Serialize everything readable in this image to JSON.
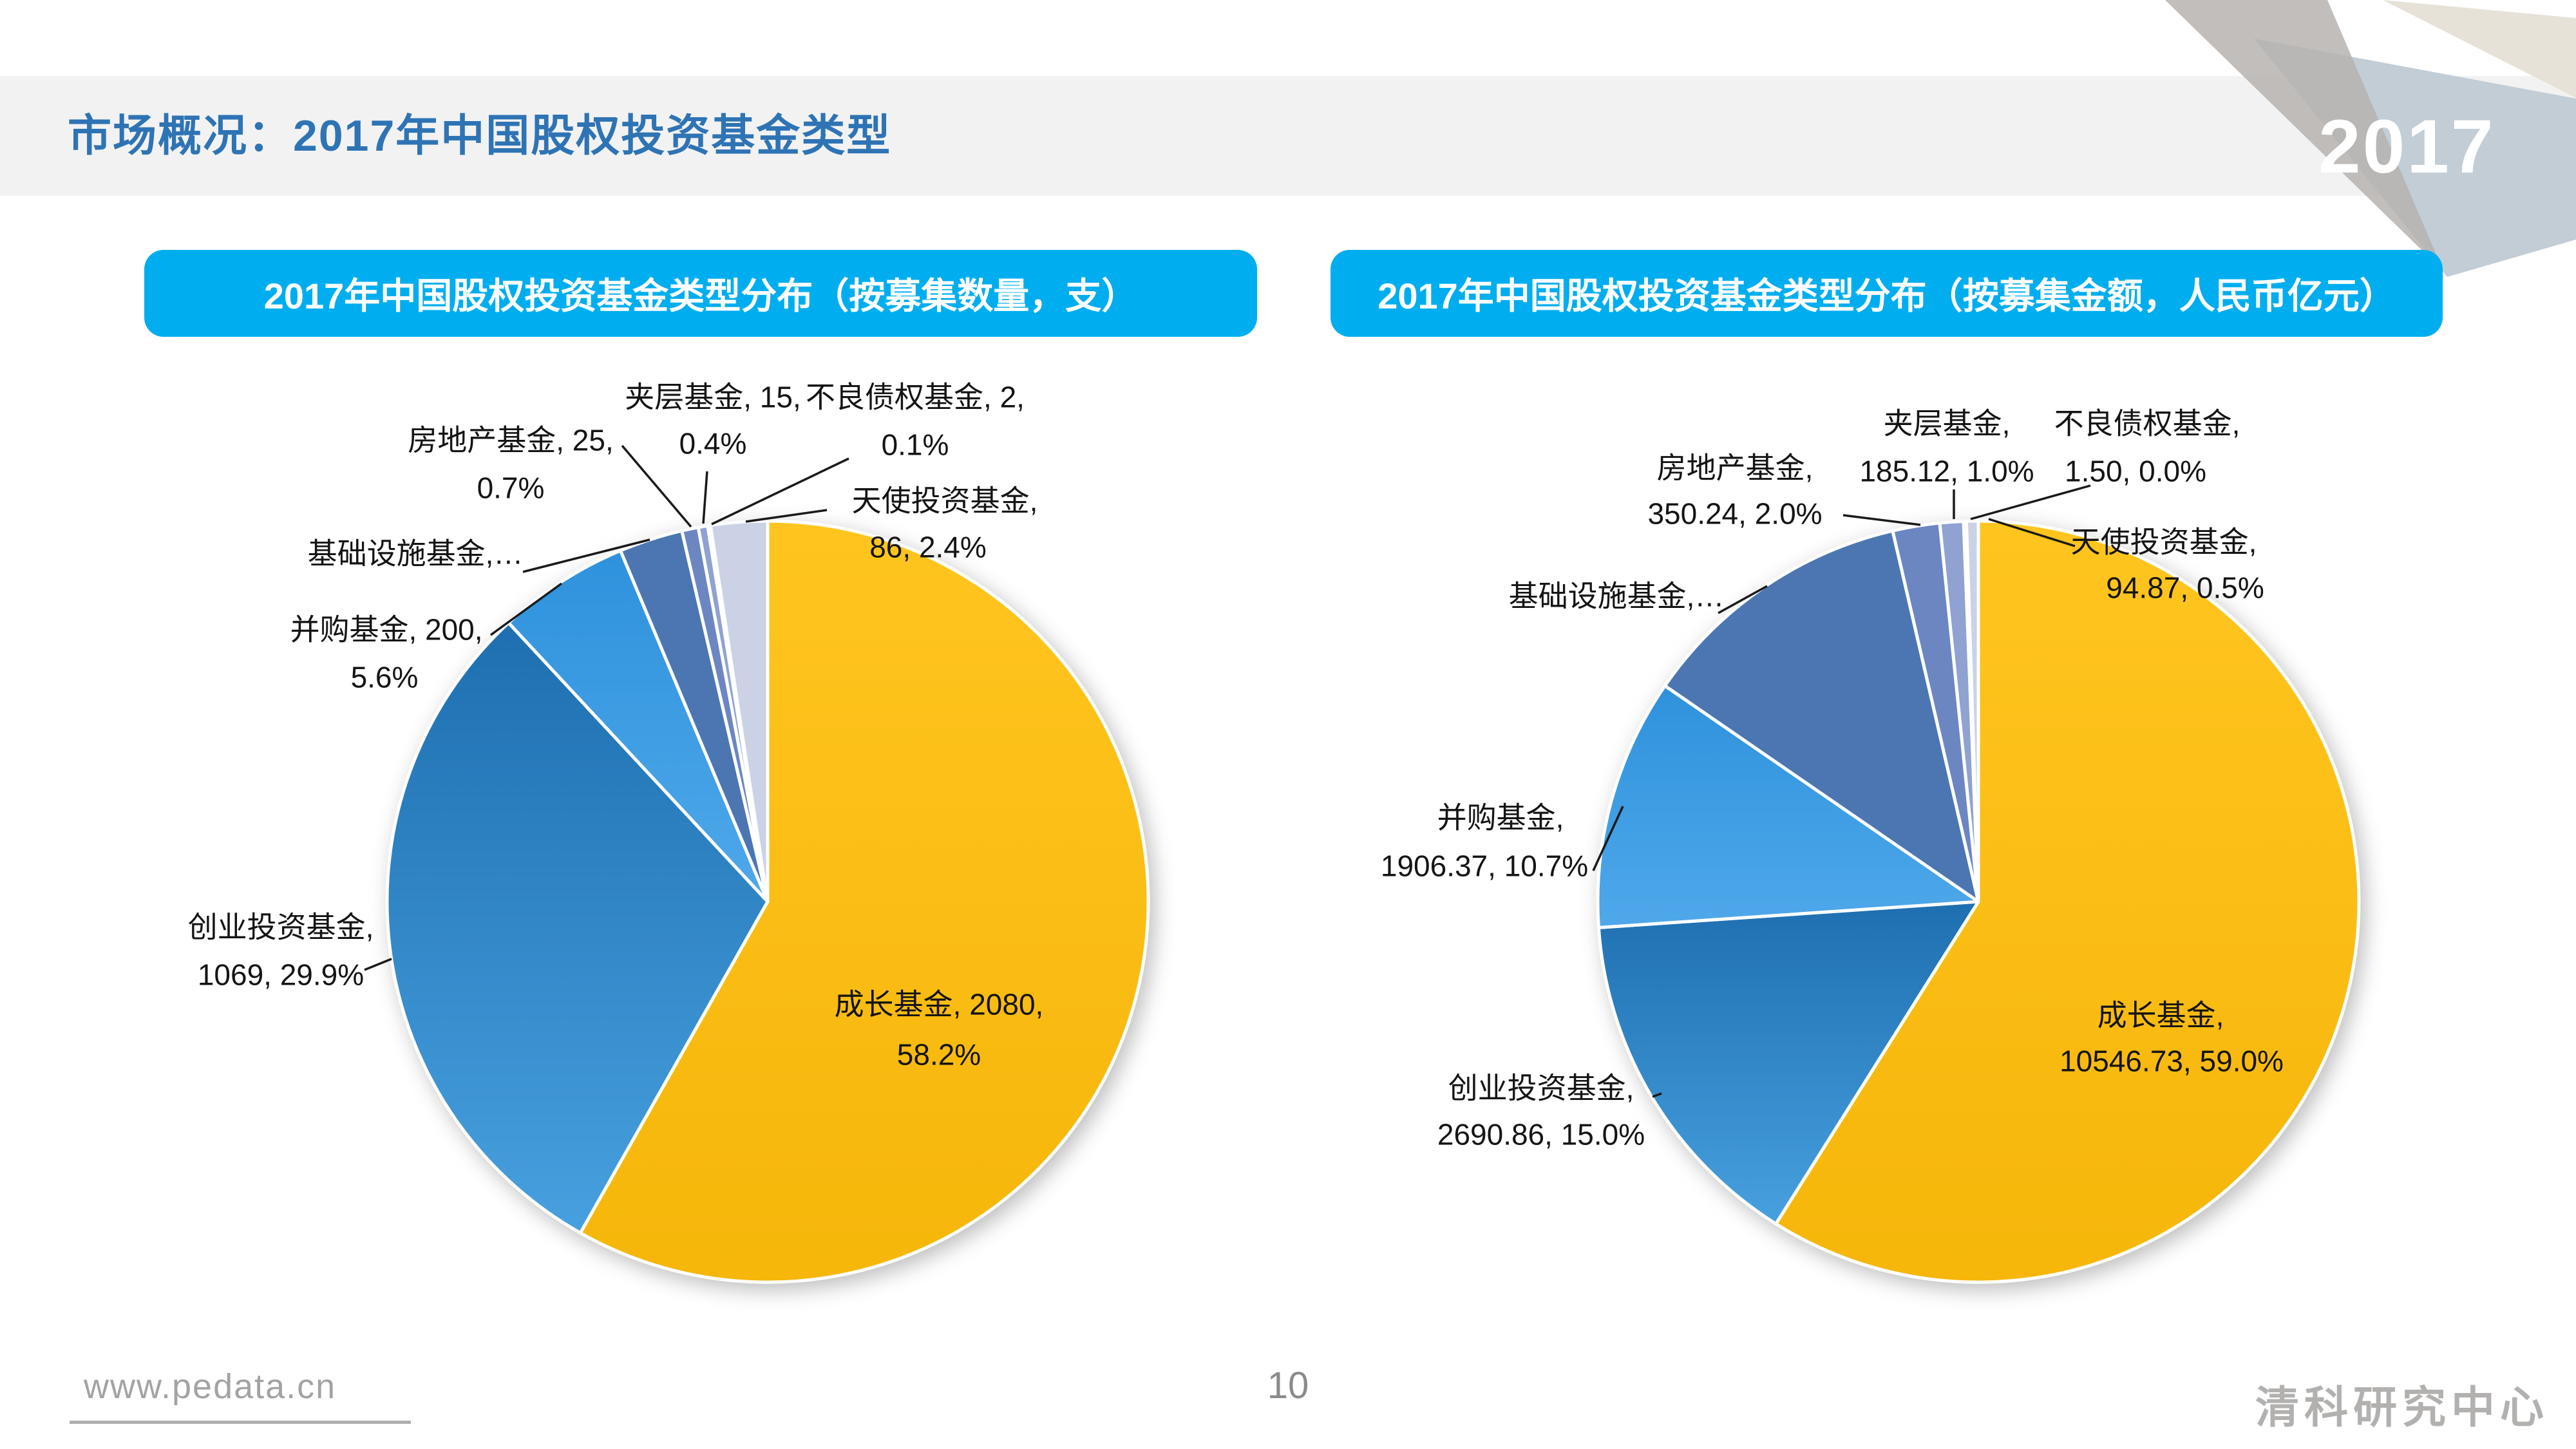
{
  "page": {
    "title": "市场概况：2017年中国股权投资基金类型",
    "year_badge": "2017",
    "footer": {
      "website": "www.pedata.cn",
      "page_number": "10",
      "brand": "清科研究中心"
    }
  },
  "colors": {
    "accent_bar": "#00AEEF",
    "title_blue": "#2E74B5",
    "growth_yellow": "#FEBE10",
    "vc_blue": "#2E86C9"
  },
  "chart_data": [
    {
      "type": "pie",
      "title": "2017年中国股权投资基金类型分布（按募集数量，支）",
      "unit": "支",
      "legend_position": "callouts",
      "slices": [
        {
          "name": "成长基金",
          "value": 2080,
          "pct": 58.2,
          "color": "#FEBE10",
          "gradient": [
            "#FFC51F",
            "#F6B60A"
          ]
        },
        {
          "name": "创业投资基金",
          "value": 1069,
          "pct": 29.9,
          "color": "#2E86C9",
          "gradient": [
            "#1E6FB0",
            "#47A0DF"
          ]
        },
        {
          "name": "并购基金",
          "value": 200,
          "pct": 5.6,
          "color": "#3B97DF",
          "gradient": [
            "#2E92DC",
            "#4FA8EA"
          ]
        },
        {
          "name": "基础设施基金",
          "value": null,
          "pct": 2.7,
          "color": "#4C76B2"
        },
        {
          "name": "房地产基金",
          "value": 25,
          "pct": 0.7,
          "color": "#6C86C2"
        },
        {
          "name": "夹层基金",
          "value": 15,
          "pct": 0.4,
          "color": "#8FA2D1"
        },
        {
          "name": "不良债权基金",
          "value": 2,
          "pct": 0.1,
          "color": "#AEBBDC"
        },
        {
          "name": "天使投资基金",
          "value": 86,
          "pct": 2.4,
          "color": "#CBD2E6"
        }
      ],
      "callouts": [
        {
          "l1": "夹层基金, 15,",
          "l2": "0.4%"
        },
        {
          "l1": "不良债权基金, 2,",
          "l2": "0.1%"
        },
        {
          "l1": "房地产基金, 25,",
          "l2": "0.7%"
        },
        {
          "l1": "基础设施基金,…",
          "l2": ""
        },
        {
          "l1": "并购基金, 200,",
          "l2": "5.6%"
        },
        {
          "l1": "创业投资基金,",
          "l2": "1069, 29.9%"
        },
        {
          "l1": "天使投资基金,",
          "l2": "86, 2.4%"
        },
        {
          "l1": "成长基金, 2080,",
          "l2": "58.2%"
        }
      ]
    },
    {
      "type": "pie",
      "title": "2017年中国股权投资基金类型分布（按募集金额，人民币亿元）",
      "unit": "人民币亿元",
      "legend_position": "callouts",
      "slices": [
        {
          "name": "成长基金",
          "value": 10546.73,
          "pct": 59.0,
          "color": "#FEBE10",
          "gradient": [
            "#FFC51F",
            "#F6B60A"
          ]
        },
        {
          "name": "创业投资基金",
          "value": 2690.86,
          "pct": 15.0,
          "color": "#2E86C9",
          "gradient": [
            "#1E6FB0",
            "#47A0DF"
          ]
        },
        {
          "name": "并购基金",
          "value": 1906.37,
          "pct": 10.7,
          "color": "#3B97DF",
          "gradient": [
            "#2E92DC",
            "#4FA8EA"
          ]
        },
        {
          "name": "基础设施基金",
          "value": null,
          "pct": 11.8,
          "color": "#4C76B2"
        },
        {
          "name": "房地产基金",
          "value": 350.24,
          "pct": 2.0,
          "color": "#6C86C2"
        },
        {
          "name": "夹层基金",
          "value": 185.12,
          "pct": 1.0,
          "color": "#8FA2D1"
        },
        {
          "name": "不良债权基金",
          "value": 1.5,
          "pct": 0.0,
          "color": "#AEBBDC"
        },
        {
          "name": "天使投资基金",
          "value": 94.87,
          "pct": 0.5,
          "color": "#CBD2E6"
        }
      ],
      "callouts": [
        {
          "l1": "夹层基金,",
          "l2": "185.12, 1.0%"
        },
        {
          "l1": "不良债权基金,",
          "l2": "1.50, 0.0%"
        },
        {
          "l1": "房地产基金,",
          "l2": "350.24, 2.0%"
        },
        {
          "l1": "基础设施基金,…",
          "l2": ""
        },
        {
          "l1": "并购基金,",
          "l2": "1906.37, 10.7%"
        },
        {
          "l1": "创业投资基金,",
          "l2": "2690.86, 15.0%"
        },
        {
          "l1": "天使投资基金,",
          "l2": "94.87, 0.5%"
        },
        {
          "l1": "成长基金,",
          "l2": "10546.73, 59.0%"
        }
      ]
    }
  ]
}
